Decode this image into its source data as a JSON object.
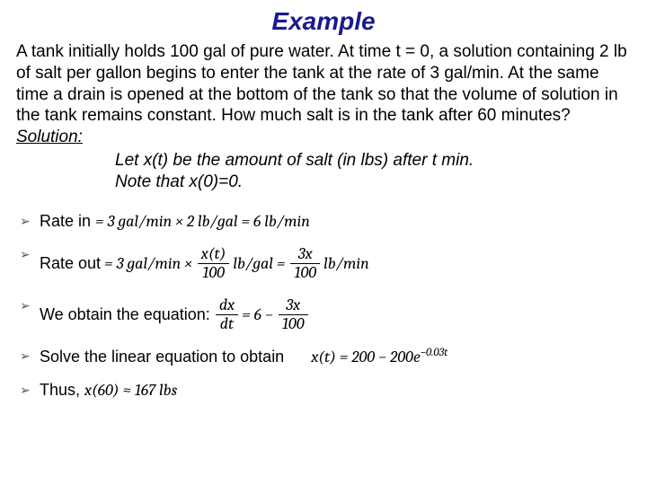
{
  "title": "Example",
  "problem_text": "A tank initially holds 100 gal of pure water. At time t = 0, a solution containing 2 lb of salt per gallon begins to enter the tank at the rate of 3 gal/min. At the same time a drain is opened at the bottom of the tank so that the volume of solution in the tank remains constant. How much salt is in the tank after 60 minutes?",
  "solution_label": "Solution:",
  "solution_line1": "Let x(t) be the amount of salt (in lbs) after t min.",
  "solution_line2": "Note that x(0)=0.",
  "bullets": {
    "b1_lead": "Rate in ",
    "b1_expr": "= 3 gal/min × 2 lb/gal = 6 lb/min",
    "b2_lead": "Rate out ",
    "b2_pre": "= 3 gal/min × ",
    "b2_frac1_num": "x(t)",
    "b2_frac1_den": "100",
    "b2_mid": " lb/gal = ",
    "b2_frac2_num": "3x",
    "b2_frac2_den": "100",
    "b2_tail": " lb/min",
    "b3_lead": "We obtain the equation: ",
    "b3_frac1_num": "dx",
    "b3_frac1_den": "dt",
    "b3_mid": " = 6 − ",
    "b3_frac2_num": "3x",
    "b3_frac2_den": "100",
    "b4_lead": "Solve the linear equation to obtain",
    "b4_expr_pre": "x(t) = 200 − 200e",
    "b4_expr_sup": "−0.03t",
    "b5_lead": "Thus, ",
    "b5_expr": "x(60) ≈ 167 lbs"
  },
  "colors": {
    "title": "#1a1a8f",
    "text": "#000000",
    "background": "#ffffff"
  },
  "fonts": {
    "body_family": "Arial",
    "math_family": "Cambria",
    "title_size_pt": 28,
    "body_size_pt": 19
  }
}
